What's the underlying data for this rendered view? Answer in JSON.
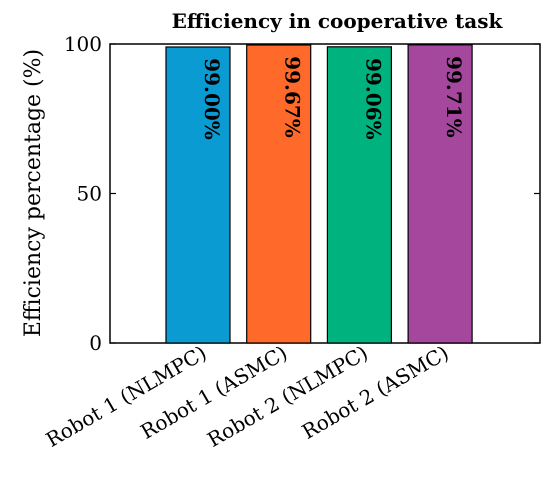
{
  "chart_data": {
    "type": "bar",
    "title": "Efficiency in cooperative task",
    "xlabel": "",
    "ylabel": "Efficiency percentage (%)",
    "categories": [
      "Robot 1 (NLMPC)",
      "Robot 1 (ASMC)",
      "Robot 2 (NLMPC)",
      "Robot 2 (ASMC)"
    ],
    "values": [
      99.0,
      99.67,
      99.06,
      99.71
    ],
    "data_labels": [
      "99.00%",
      "99.67%",
      "99.06%",
      "99.71%"
    ],
    "colors": [
      "#0b9bd3",
      "#ff6a2b",
      "#00b27e",
      "#a5479d"
    ],
    "ylim": [
      0,
      100
    ],
    "yticks": [
      0,
      50,
      100
    ],
    "ytick_labels": [
      "0",
      "50",
      "100"
    ],
    "grid": false,
    "legend": "none"
  }
}
